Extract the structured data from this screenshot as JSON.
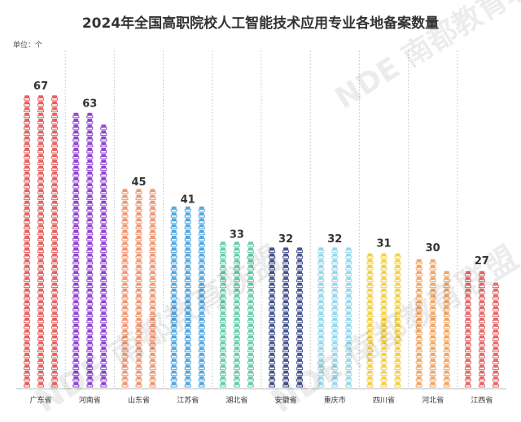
{
  "chart_data": {
    "type": "bar",
    "title": "2024年全国高职院校人工智能技术应用专业各地备案数量",
    "unit_label": "单位：个",
    "categories": [
      "广东省",
      "河南省",
      "山东省",
      "江苏省",
      "湖北省",
      "安徽省",
      "重庆市",
      "四川省",
      "河北省",
      "江西省"
    ],
    "values": [
      67,
      63,
      45,
      41,
      33,
      32,
      32,
      31,
      30,
      27
    ],
    "colors": [
      "#e55a5a",
      "#8a3ccf",
      "#f0916a",
      "#4aa3e0",
      "#5fcaa8",
      "#3e4d8a",
      "#8fd6ea",
      "#f3cd3a",
      "#f2a25c",
      "#e46262"
    ],
    "ylim": [
      0,
      70
    ],
    "grid": false,
    "legend": "none",
    "watermark": "NDE 南都教育联盟"
  }
}
